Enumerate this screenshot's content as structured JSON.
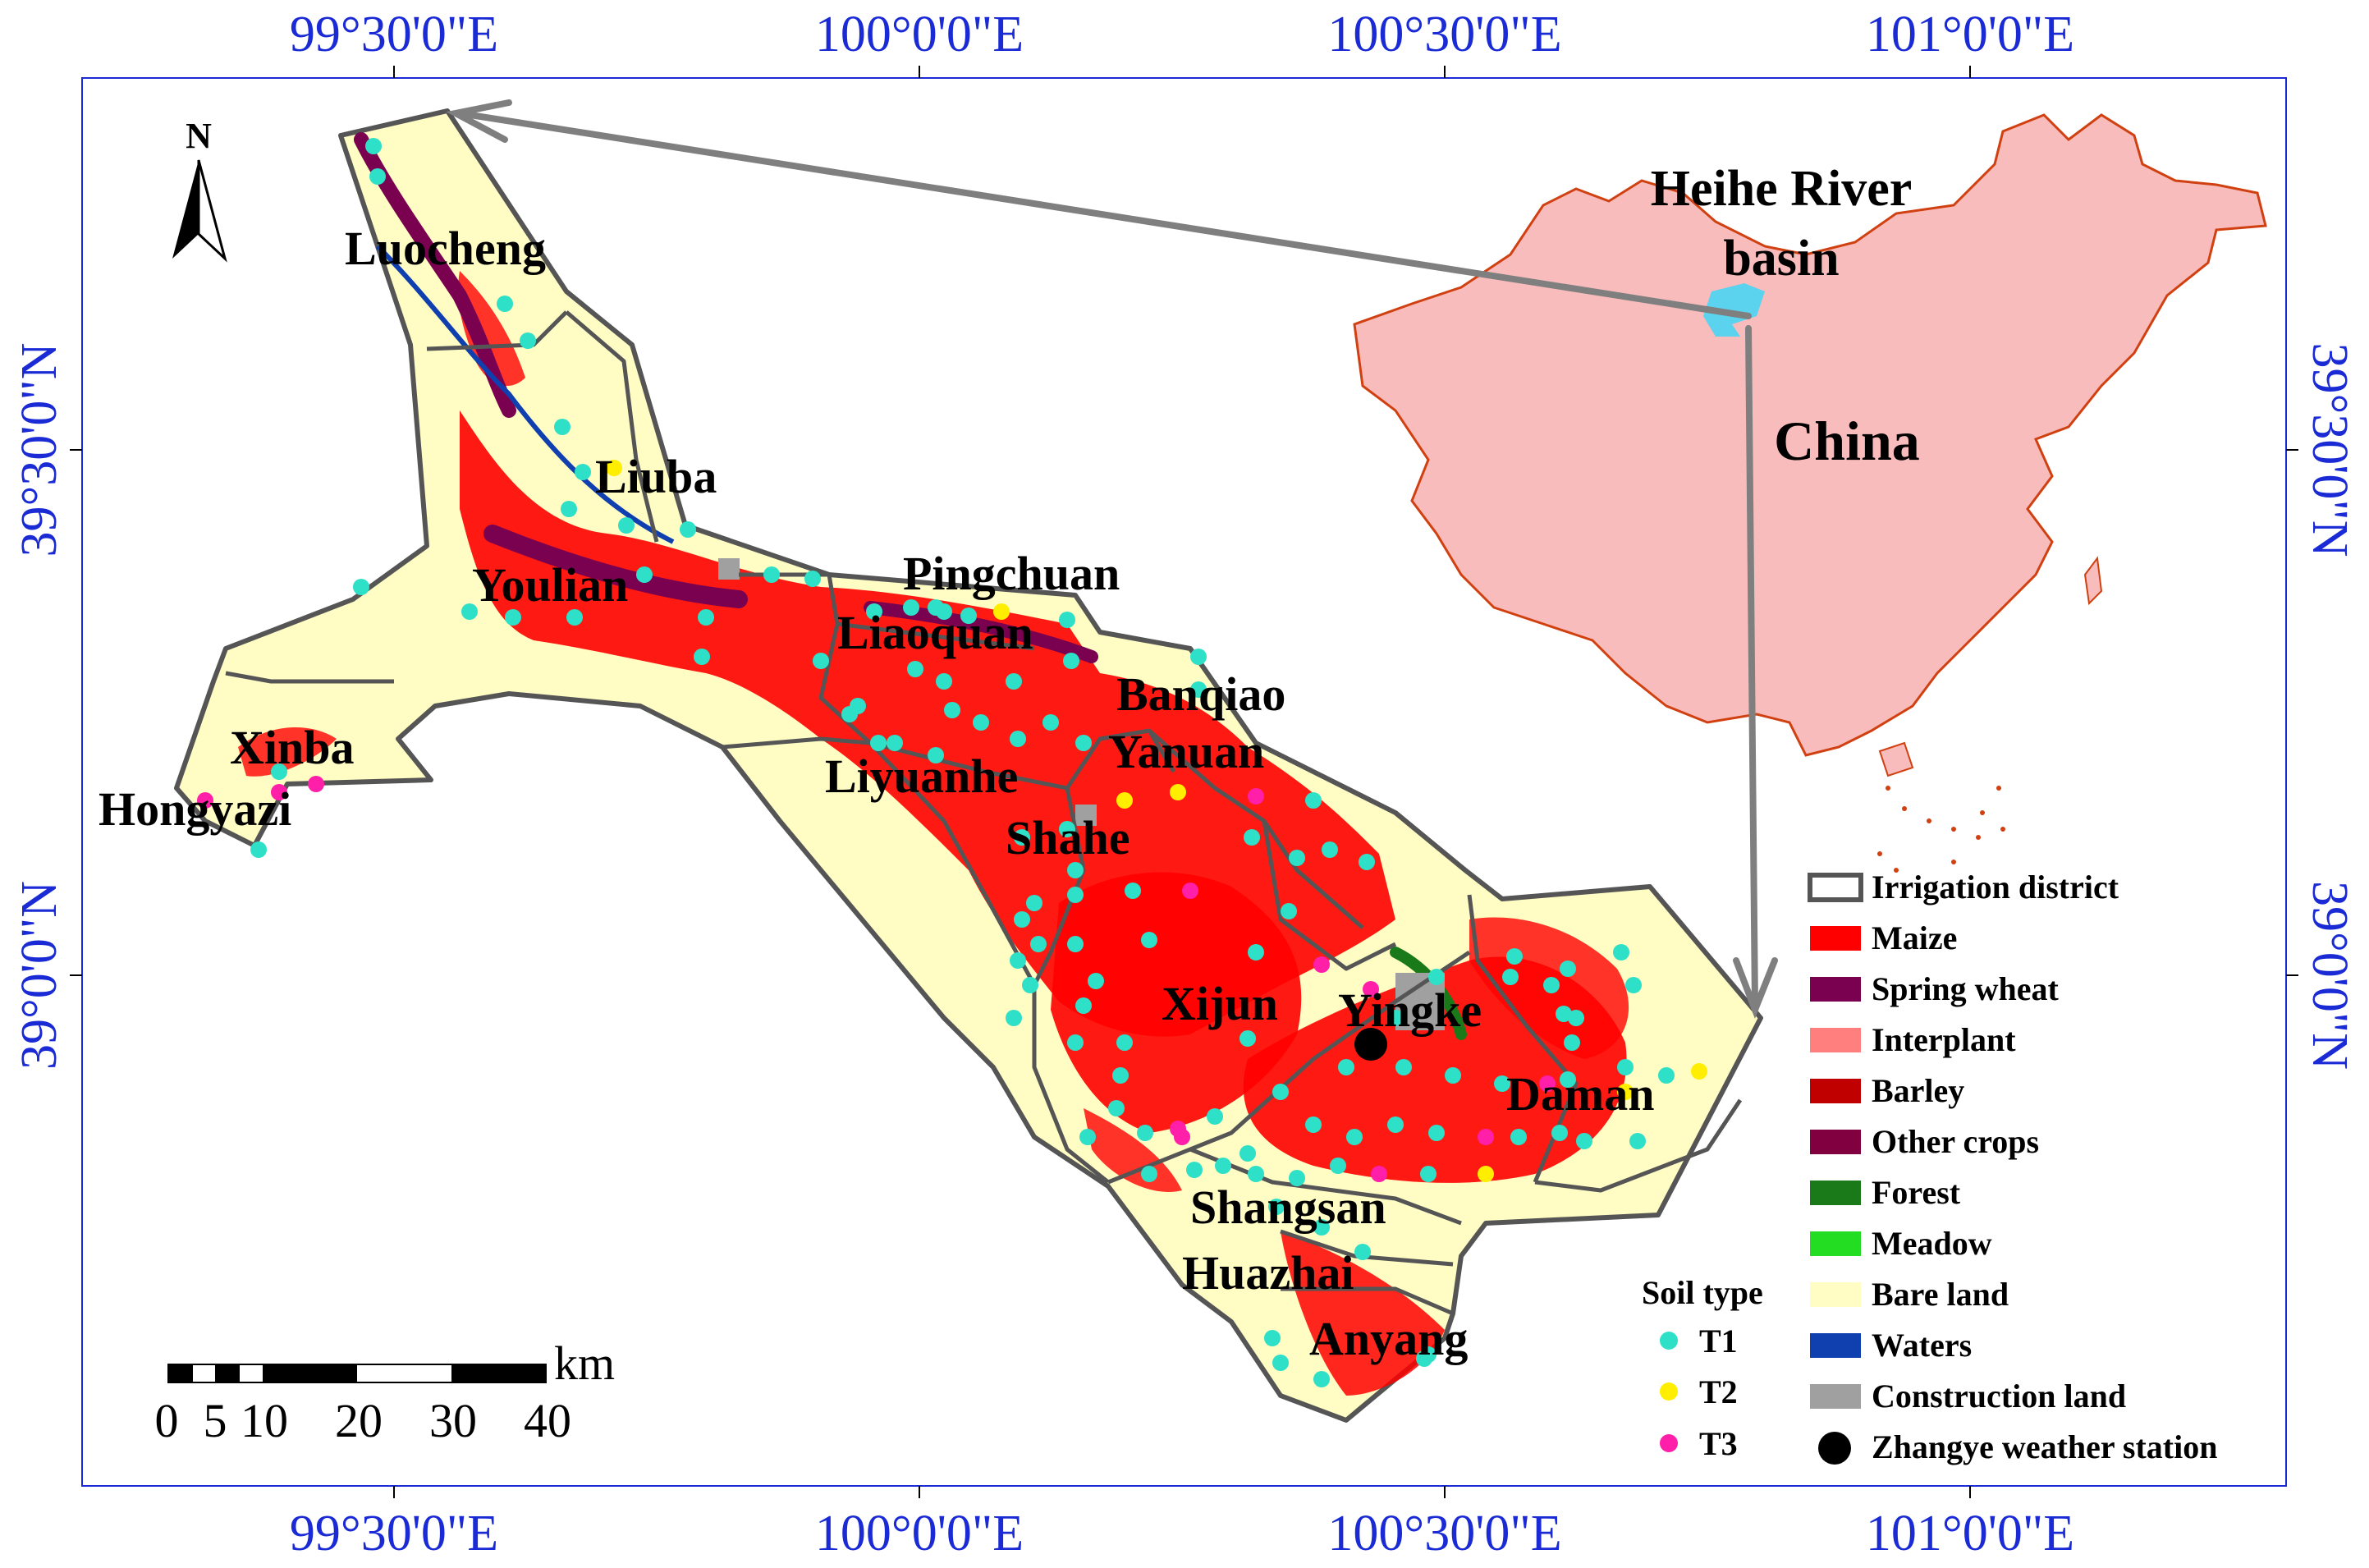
{
  "graticule": {
    "top": [
      "99°30'0\"E",
      "100°0'0\"E",
      "100°30'0\"E",
      "101°0'0\"E"
    ],
    "bottom": [
      "99°30'0\"E",
      "100°0'0\"E",
      "100°30'0\"E",
      "101°0'0\"E"
    ],
    "left": [
      "39°30'0\"N",
      "39°0'0\"N"
    ],
    "right": [
      "39°30'0\"N",
      "39°0'0\"N"
    ]
  },
  "north_arrow": "N",
  "districts": [
    "Luocheng",
    "Liuba",
    "Youlian",
    "Pingchuan",
    "Liaoquan",
    "Banqiao",
    "Yanuan",
    "Liyuanhe",
    "Xinba",
    "Hongyazi",
    "Shahe",
    "Xijun",
    "Yingke",
    "Daman",
    "Shangsan",
    "Huazhai",
    "Anyang"
  ],
  "inset": {
    "basin_label": [
      "Heihe River",
      "basin"
    ],
    "country_label": "China"
  },
  "scale_bar": {
    "ticks": [
      "0",
      "5",
      "10",
      "20",
      "30",
      "40"
    ],
    "unit": "km"
  },
  "soil_legend": {
    "title": "Soil type",
    "items": [
      {
        "label": "T1",
        "color": "#2fe0c8"
      },
      {
        "label": "T2",
        "color": "#ffee00"
      },
      {
        "label": "T3",
        "color": "#ff1fa8"
      }
    ]
  },
  "landuse_legend": [
    {
      "label": "Irrigation district",
      "color": "#ffffff",
      "style": "outline"
    },
    {
      "label": "Maize",
      "color": "#ff0000",
      "style": "fill"
    },
    {
      "label": "Spring wheat",
      "color": "#7a0050",
      "style": "fill"
    },
    {
      "label": "Interplant",
      "color": "#ff7f7f",
      "style": "fill"
    },
    {
      "label": "Barley",
      "color": "#c00000",
      "style": "fill"
    },
    {
      "label": "Other crops",
      "color": "#800040",
      "style": "fill"
    },
    {
      "label": "Forest",
      "color": "#1a7a1a",
      "style": "fill"
    },
    {
      "label": "Meadow",
      "color": "#22dd22",
      "style": "fill"
    },
    {
      "label": "Bare land",
      "color": "#fffcc4",
      "style": "fill"
    },
    {
      "label": "Waters",
      "color": "#1040b0",
      "style": "fill"
    },
    {
      "label": "Construction land",
      "color": "#a0a0a0",
      "style": "fill"
    },
    {
      "label": "Zhangye weather station",
      "color": "#000000",
      "style": "dot"
    }
  ],
  "colors": {
    "graticule_text": "#1a2bd6",
    "china_fill": "#f8bcbc",
    "china_border": "#d04010",
    "basin_fill": "#5bd2ee",
    "arrow": "#7f7f7f"
  }
}
